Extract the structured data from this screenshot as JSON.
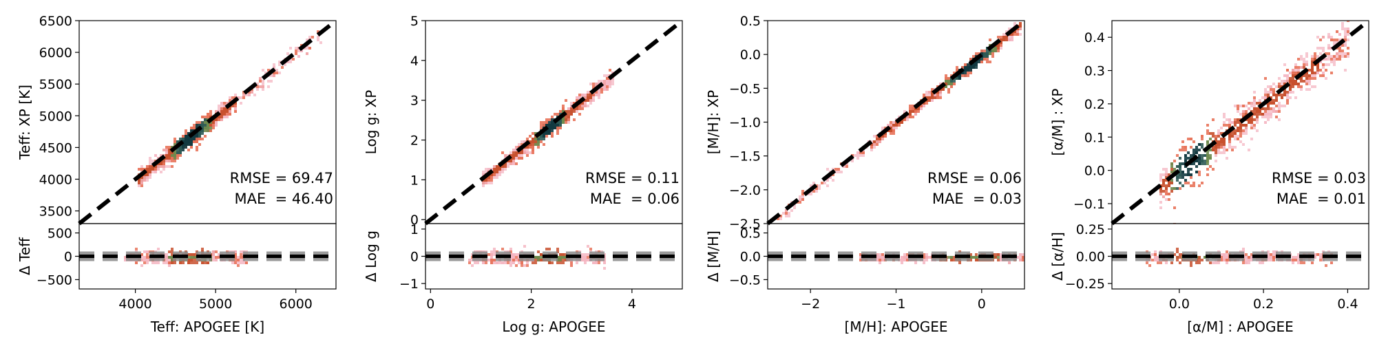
{
  "chart_data": [
    {
      "type": "scatter",
      "density_colors": [
        "#f4b6c2",
        "#e8735a",
        "#c8502e",
        "#6e8a4e",
        "#2e5a55",
        "#123a40"
      ],
      "xlabel": "Teff: APOGEE [K]",
      "ylabel": "Teff: XP [K]",
      "resid_label": "Δ Teff",
      "xlim": [
        3300,
        6500
      ],
      "ylim": [
        3300,
        6500
      ],
      "resid_lim": [
        -700,
        700
      ],
      "x_ticks": [
        4000,
        5000,
        6000
      ],
      "y_ticks": [
        3500,
        4000,
        4500,
        5000,
        5500,
        6000,
        6500
      ],
      "resid_ticks": [
        -500,
        0,
        500
      ],
      "density": {
        "x_range": [
          4020,
          5250
        ],
        "scatter_y": 80,
        "sparse_x": [
          5250,
          6300
        ],
        "core": [
          4400,
          4950
        ],
        "resid_spread": 130
      },
      "stats": [
        "RMSE = 69.47",
        "MAE  = 46.40"
      ]
    },
    {
      "type": "scatter",
      "density_colors": [
        "#f4b6c2",
        "#e8735a",
        "#c8502e",
        "#6e8a4e",
        "#2e5a55",
        "#123a40"
      ],
      "xlabel": "Log g: APOGEE",
      "ylabel": "Log g: XP",
      "resid_label": "Δ Log g",
      "xlim": [
        -0.1,
        5
      ],
      "ylim": [
        -0.1,
        5
      ],
      "resid_lim": [
        -1.2,
        1.2
      ],
      "x_ticks": [
        0,
        2,
        4
      ],
      "y_ticks": [
        0,
        1,
        2,
        3,
        4,
        5
      ],
      "resid_ticks": [
        -1,
        0,
        1
      ],
      "density": {
        "x_range": [
          1.0,
          3.2
        ],
        "scatter_y": 0.12,
        "sparse_x": [
          3.2,
          3.6
        ],
        "core": [
          2.0,
          2.7
        ],
        "resid_spread": 0.25
      },
      "stats": [
        "RMSE = 0.11",
        "MAE  = 0.06"
      ]
    },
    {
      "type": "scatter",
      "density_colors": [
        "#f4b6c2",
        "#e8735a",
        "#c8502e",
        "#6e8a4e",
        "#2e5a55",
        "#123a40"
      ],
      "xlabel": "[M/H]: APOGEE",
      "ylabel": "[M/H]: XP",
      "resid_label": "Δ [M/H]",
      "xlim": [
        -2.5,
        0.5
      ],
      "ylim": [
        -2.5,
        0.5
      ],
      "resid_lim": [
        -0.7,
        0.7
      ],
      "x_ticks": [
        -2,
        -1,
        0
      ],
      "y_ticks": [
        -2.5,
        -2.0,
        -1.5,
        -1.0,
        -0.5,
        0.0,
        0.5
      ],
      "resid_ticks": [
        -0.5,
        0.0,
        0.5
      ],
      "density": {
        "x_range": [
          -1.3,
          0.45
        ],
        "scatter_y": 0.05,
        "sparse_x": [
          -2.4,
          -1.3
        ],
        "core": [
          -0.5,
          0.2
        ],
        "resid_spread": 0.08
      },
      "stats": [
        "RMSE = 0.06",
        "MAE  = 0.03"
      ]
    },
    {
      "type": "scatter",
      "density_colors": [
        "#f4b6c2",
        "#e8735a",
        "#c8502e",
        "#6e8a4e",
        "#2e5a55",
        "#123a40"
      ],
      "xlabel": "[α/M] : APOGEE",
      "ylabel": "[α/M] : XP",
      "resid_label": "Δ [α/H]",
      "xlim": [
        -0.16,
        0.45
      ],
      "ylim": [
        -0.16,
        0.45
      ],
      "resid_lim": [
        -0.3,
        0.3
      ],
      "x_ticks": [
        0.0,
        0.2,
        0.4
      ],
      "y_ticks": [
        -0.1,
        0.0,
        0.1,
        0.2,
        0.3,
        0.4
      ],
      "resid_ticks": [
        -0.25,
        0.0,
        0.25
      ],
      "density": {
        "x_range": [
          -0.05,
          0.33
        ],
        "scatter_y": 0.035,
        "sparse_x": [
          0.33,
          0.4
        ],
        "core": [
          -0.03,
          0.08
        ],
        "resid_spread": 0.05
      },
      "stats": [
        "RMSE = 0.03",
        "MAE  = 0.01"
      ]
    }
  ]
}
